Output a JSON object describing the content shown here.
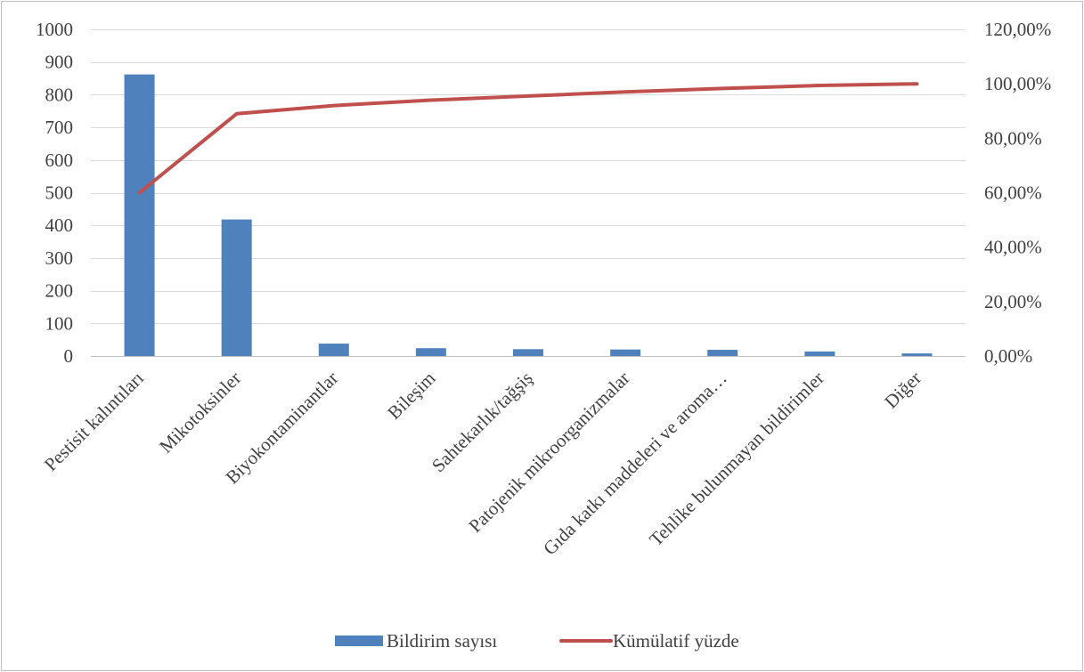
{
  "chart_data": {
    "type": "bar",
    "categories": [
      "Pestisit kalıntıları",
      "Mikotoksinler",
      "Biyokontaminantlar",
      "Bileşim",
      "Sahtekarlık/tağşiş",
      "Patojenik mikroorganizmalar",
      "Gıda katkı maddeleri ve aroma…",
      "Tehlike bulunmayan bildirimler",
      "Diğer"
    ],
    "series": [
      {
        "name": "Bildirim sayısı",
        "type": "bar",
        "axis": "left",
        "color": "#4f81bd",
        "values": [
          862,
          418,
          38,
          24,
          21,
          20,
          19,
          14,
          8
        ]
      },
      {
        "name": "Kümülatif yüzde",
        "type": "line",
        "axis": "right",
        "color": "#c0504d",
        "values": [
          0.6,
          0.89,
          0.92,
          0.94,
          0.955,
          0.97,
          0.983,
          0.994,
          1.0
        ]
      }
    ],
    "y_left": {
      "ylim": [
        0,
        1000
      ],
      "ticks": [
        "0",
        "100",
        "200",
        "300",
        "400",
        "500",
        "600",
        "700",
        "800",
        "900",
        "1000"
      ]
    },
    "y_right": {
      "ylim": [
        0,
        1.2
      ],
      "ticks": [
        "0,00%",
        "20,00%",
        "40,00%",
        "60,00%",
        "80,00%",
        "100,00%",
        "120,00%"
      ]
    },
    "grid": true,
    "legend_position": "bottom",
    "legend": [
      {
        "label": "Bildirim sayısı",
        "kind": "bar",
        "color": "#4f81bd"
      },
      {
        "label": "Kümülatif yüzde",
        "kind": "line",
        "color": "#c0504d"
      }
    ]
  }
}
